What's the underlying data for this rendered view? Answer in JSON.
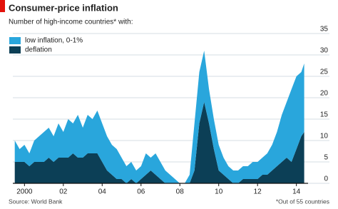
{
  "chart_data": {
    "type": "stacked-area",
    "title": "Consumer-price inflation",
    "subtitle": "Number of high-income countries* with:",
    "source": "Source: World Bank",
    "note": "*Out of 55 countries",
    "x": [
      1999.5,
      1999.75,
      2000,
      2000.25,
      2000.5,
      2000.75,
      2001,
      2001.25,
      2001.5,
      2001.75,
      2002,
      2002.25,
      2002.5,
      2002.75,
      2003,
      2003.25,
      2003.5,
      2003.75,
      2004,
      2004.25,
      2004.5,
      2004.75,
      2005,
      2005.25,
      2005.5,
      2005.75,
      2006,
      2006.25,
      2006.5,
      2006.75,
      2007,
      2007.25,
      2007.5,
      2007.75,
      2008,
      2008.25,
      2008.5,
      2008.75,
      2009,
      2009.25,
      2009.5,
      2009.75,
      2010,
      2010.25,
      2010.5,
      2010.75,
      2011,
      2011.25,
      2011.5,
      2011.75,
      2012,
      2012.25,
      2012.5,
      2012.75,
      2013,
      2013.25,
      2013.5,
      2013.75,
      2014,
      2014.25,
      2014.4
    ],
    "series": [
      {
        "name": "low inflation, 0-1%",
        "color": "#29a6dc",
        "values": [
          5,
          3,
          4,
          3,
          5,
          6,
          7,
          7,
          6,
          8,
          6,
          9,
          7,
          10,
          7,
          9,
          8,
          10,
          9,
          8,
          7,
          7,
          5,
          4,
          4,
          3,
          3,
          5,
          3,
          5,
          4,
          3,
          2,
          1,
          0,
          0,
          2,
          11,
          12,
          12,
          8,
          7,
          6,
          4,
          3,
          3,
          3,
          3,
          3,
          4,
          4,
          4,
          5,
          6,
          8,
          11,
          13,
          17,
          17,
          15,
          16
        ]
      },
      {
        "name": "deflation",
        "color": "#0c3f56",
        "values": [
          5,
          5,
          5,
          4,
          5,
          5,
          5,
          6,
          5,
          6,
          6,
          6,
          7,
          6,
          6,
          7,
          7,
          7,
          5,
          3,
          2,
          1,
          1,
          0,
          1,
          0,
          1,
          2,
          3,
          2,
          1,
          0,
          0,
          0,
          0,
          0,
          0,
          3,
          14,
          19,
          14,
          8,
          3,
          2,
          1,
          0,
          0,
          1,
          1,
          1,
          1,
          2,
          2,
          3,
          4,
          5,
          6,
          5,
          8,
          11,
          12
        ]
      }
    ],
    "xlim": [
      1999.4,
      2014.6
    ],
    "ylim": [
      0,
      35
    ],
    "xticks": [
      {
        "value": 2000,
        "label": "2000"
      },
      {
        "value": 2002,
        "label": "02"
      },
      {
        "value": 2004,
        "label": "04"
      },
      {
        "value": 2006,
        "label": "06"
      },
      {
        "value": 2008,
        "label": "08"
      },
      {
        "value": 2010,
        "label": "10"
      },
      {
        "value": 2012,
        "label": "12"
      },
      {
        "value": 2014,
        "label": "14"
      }
    ],
    "yticks": [
      0,
      5,
      10,
      15,
      20,
      25,
      30,
      35
    ],
    "grid": true,
    "legend": "top-left"
  }
}
